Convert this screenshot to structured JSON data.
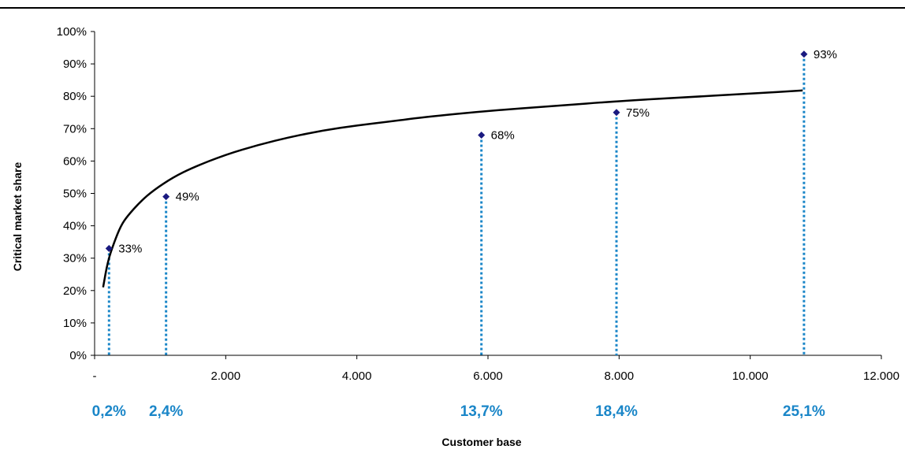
{
  "chart_data": {
    "type": "scatter",
    "title": "",
    "xlabel": "Customer base",
    "ylabel": "Critical market share",
    "xlim": [
      0,
      12000
    ],
    "ylim": [
      0,
      100
    ],
    "grid": false,
    "x_ticks": [
      0,
      2000,
      4000,
      6000,
      8000,
      10000,
      12000
    ],
    "x_tick_labels": [
      "-",
      "2.000",
      "4.000",
      "6.000",
      "8.000",
      "10.000",
      "12.000"
    ],
    "y_ticks": [
      0,
      10,
      20,
      30,
      40,
      50,
      60,
      70,
      80,
      90,
      100
    ],
    "y_tick_labels": [
      "0%",
      "10%",
      "20%",
      "30%",
      "40%",
      "50%",
      "60%",
      "70%",
      "80%",
      "90%",
      "100%"
    ],
    "points": {
      "x": [
        220,
        1090,
        5900,
        7960,
        10820
      ],
      "y": [
        33,
        49,
        68,
        75,
        93
      ],
      "labels": [
        "33%",
        "49%",
        "68%",
        "75%",
        "93%"
      ],
      "color": "#1a1a80"
    },
    "curve": {
      "x": [
        130,
        200,
        300,
        400,
        500,
        700,
        900,
        1200,
        1500,
        2000,
        2500,
        3000,
        3500,
        4000,
        4500,
        5000,
        6000,
        7000,
        8000,
        9000,
        10000,
        10800
      ],
      "y": [
        21,
        29,
        35,
        40,
        43,
        47.5,
        51,
        55,
        58,
        62,
        65,
        67.5,
        69.5,
        71,
        72.2,
        73.5,
        75.5,
        77,
        78.5,
        79.7,
        80.8,
        81.8
      ],
      "color": "#000000"
    },
    "drop_lines_color": "#1a86c8",
    "share_labels": [
      "0,2%",
      "2,4%",
      "13,7%",
      "18,4%",
      "25,1%"
    ],
    "share_label_x": [
      220,
      1090,
      5900,
      7960,
      10820
    ]
  }
}
